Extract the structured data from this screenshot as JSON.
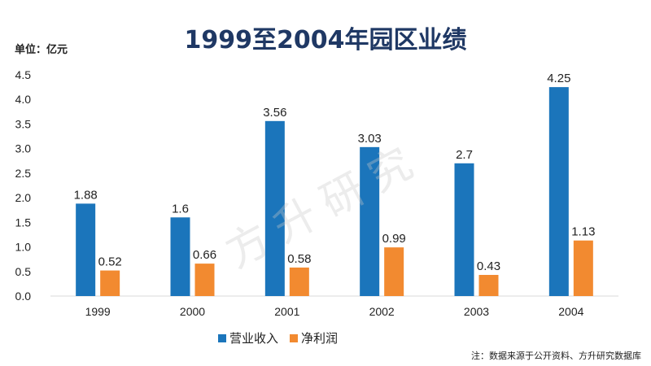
{
  "chart_data": {
    "type": "bar",
    "title": "1999至2004年园区业绩",
    "unit_label": "单位：亿元",
    "categories": [
      "1999",
      "2000",
      "2001",
      "2002",
      "2003",
      "2004"
    ],
    "series": [
      {
        "name": "营业收入",
        "color": "#1b75bb",
        "values": [
          1.88,
          1.6,
          3.56,
          3.03,
          2.7,
          4.25
        ]
      },
      {
        "name": "净利润",
        "color": "#f28a30",
        "values": [
          0.52,
          0.66,
          0.58,
          0.99,
          0.43,
          1.13
        ]
      }
    ],
    "ylim": [
      0,
      4.5
    ],
    "yticks": [
      "0.0",
      "0.5",
      "1.0",
      "1.5",
      "2.0",
      "2.5",
      "3.0",
      "3.5",
      "4.0",
      "4.5"
    ],
    "grid": false,
    "legend_position": "bottom-center"
  },
  "watermark": "方升研究",
  "source_note": "注：数据来源于公开资料、方升研究数据库"
}
